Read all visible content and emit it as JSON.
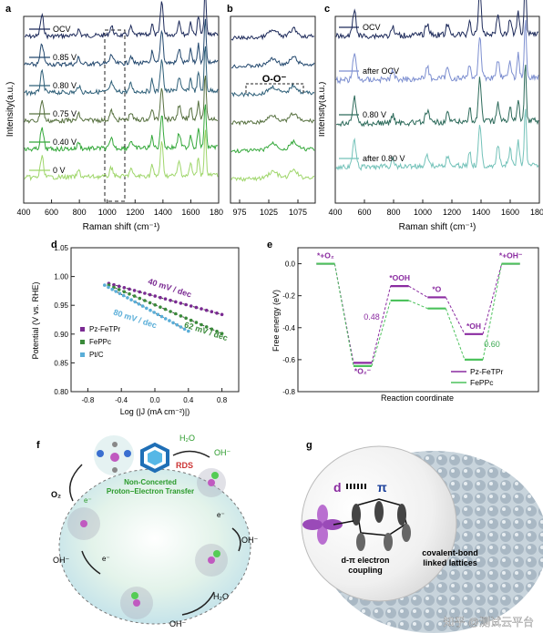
{
  "chart_data": [
    {
      "panel": "a",
      "type": "line",
      "xlabel": "Raman shift (cm⁻¹)",
      "ylabel": "Intensity(a.u.)",
      "xlim": [
        400,
        1800
      ],
      "xticks": [
        "400",
        "600",
        "800",
        "1000",
        "1200",
        "1400",
        "1600",
        "1800"
      ],
      "series": [
        {
          "name": "OCV",
          "color": "#1d2a5a"
        },
        {
          "name": "0.85 V",
          "color": "#23486e"
        },
        {
          "name": "0.80 V",
          "color": "#2e5f78"
        },
        {
          "name": "0.75 V",
          "color": "#56703f"
        },
        {
          "name": "0.40 V",
          "color": "#34a83a"
        },
        {
          "name": "0 V",
          "color": "#9fd66b"
        }
      ]
    },
    {
      "panel": "b",
      "type": "line",
      "xlim": [
        950,
        1100
      ],
      "xticks": [
        "975",
        "1025",
        "1075"
      ],
      "annotation": "O-O⁻"
    },
    {
      "panel": "c",
      "type": "line",
      "xlabel": "Raman shift (cm⁻¹)",
      "ylabel": "Intensity(a.u.)",
      "xlim": [
        400,
        1800
      ],
      "xticks": [
        "400",
        "600",
        "800",
        "1000",
        "1200",
        "1400",
        "1600",
        "1800"
      ],
      "series": [
        {
          "name": "OCV",
          "color": "#1d2a5a"
        },
        {
          "name": "after OCV",
          "color": "#7d8fd0"
        },
        {
          "name": "0.80 V",
          "color": "#2c6a5a"
        },
        {
          "name": "after 0.80 V",
          "color": "#73c2b9"
        }
      ]
    },
    {
      "panel": "d",
      "type": "scatter",
      "xlabel": "Log (|J (mA cm⁻²)|)",
      "ylabel": "Potential (V vs. RHE)",
      "xlim": [
        -1.0,
        1.0
      ],
      "ylim": [
        0.8,
        1.05
      ],
      "xticks": [
        "-0.8",
        "-0.4",
        "0.0",
        "0.4",
        "0.8"
      ],
      "yticks": [
        "0.80",
        "0.85",
        "0.90",
        "0.95",
        "1.00",
        "1.05"
      ],
      "series": [
        {
          "name": "Pz-FeTPr",
          "color": "#7a2a92",
          "x0": -0.55,
          "y0": 0.988,
          "x1": 0.8,
          "y1": 0.934,
          "slope": "40 mV / dec"
        },
        {
          "name": "FePPc",
          "color": "#3a8a3a",
          "x0": -0.55,
          "y0": 0.985,
          "x1": 0.8,
          "y1": 0.901,
          "slope": "62 mV / dec"
        },
        {
          "name": "Pt/C",
          "color": "#5aaed8",
          "x0": -0.6,
          "y0": 0.985,
          "x1": 0.4,
          "y1": 0.905,
          "slope": "80 mV / dec"
        }
      ]
    },
    {
      "panel": "e",
      "type": "line",
      "xlabel": "Reaction coordinate",
      "ylabel": "Free energy (eV)",
      "ylim": [
        -0.8,
        0.1
      ],
      "yticks": [
        "0.0",
        "-0.2",
        "-0.4",
        "-0.6",
        "-0.8"
      ],
      "steps": [
        "*+O₂",
        "*O₂⁻",
        "*OOH",
        "*O",
        "*OH",
        "*+OH⁻"
      ],
      "series": [
        {
          "name": "Pz-FeTPr",
          "color": "#8a2ba0",
          "values": [
            0.0,
            -0.62,
            -0.14,
            -0.21,
            -0.44,
            0.0
          ]
        },
        {
          "name": "FePPc",
          "color": "#4cc25c",
          "values": [
            0.0,
            -0.64,
            -0.23,
            -0.28,
            -0.6,
            0.0
          ]
        }
      ],
      "annotations": [
        {
          "text": "0.48",
          "color": "#8a2ba0"
        },
        {
          "text": "0.60",
          "color": "#3aa850"
        }
      ]
    }
  ],
  "panel_f": {
    "letter": "f",
    "labels": {
      "h2o_top": "H₂O",
      "oh_top": "OH⁻",
      "rds": "RDS",
      "o2": "O₂",
      "e1": "e⁻",
      "ncpet_1": "Non-Concerted",
      "ncpet_2": "Proton−Electron Transfer",
      "e2": "e⁻",
      "oh_right": "OH⁻",
      "oh_left": "OH⁻",
      "e3": "e⁻",
      "h2o_bottom": "H₂O",
      "oh_bottom": "OH⁻"
    }
  },
  "panel_g": {
    "letter": "g",
    "labels": {
      "d": "d",
      "pi": "π",
      "coupling_1": "d-π electron",
      "coupling_2": "coupling",
      "lattice_1": "covalent-bond",
      "lattice_2": "linked lattices"
    }
  },
  "watermark": "知乎 @测试云平台"
}
